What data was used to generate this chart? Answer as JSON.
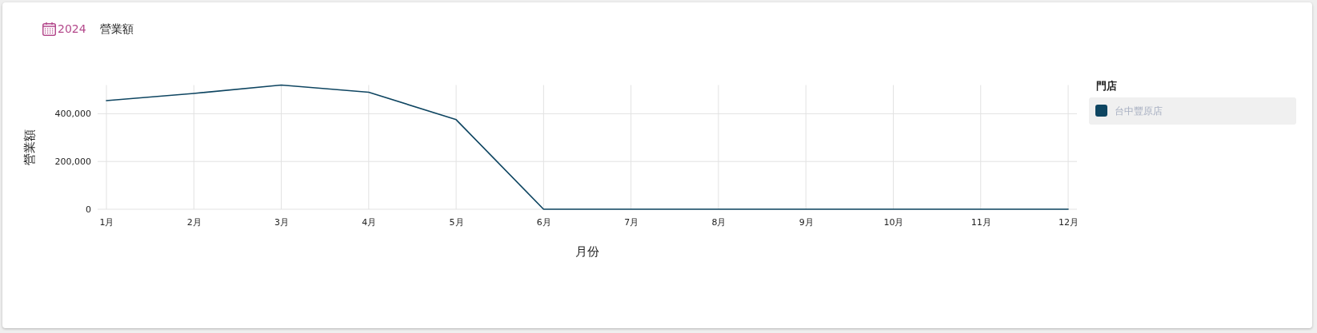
{
  "chart_data": {
    "type": "line",
    "title": "營業額",
    "subtitle": "2024",
    "xlabel": "月份",
    "ylabel": "營業額",
    "legend_title": "門店",
    "categories": [
      "1月",
      "2月",
      "3月",
      "4月",
      "5月",
      "6月",
      "7月",
      "8月",
      "9月",
      "10月",
      "11月",
      "12月"
    ],
    "series": [
      {
        "name": "台中豐原店",
        "color": "#0e4561",
        "values": [
          455000,
          485000,
          520000,
          490000,
          375000,
          0,
          0,
          0,
          0,
          0,
          0,
          0
        ]
      }
    ],
    "ylim": [
      0,
      520000
    ],
    "yticks": [
      0,
      {
        "value": 200000,
        "label": "200,000"
      },
      {
        "value": 400000,
        "label": "400,000"
      }
    ],
    "grid": true,
    "legend": "top right"
  }
}
